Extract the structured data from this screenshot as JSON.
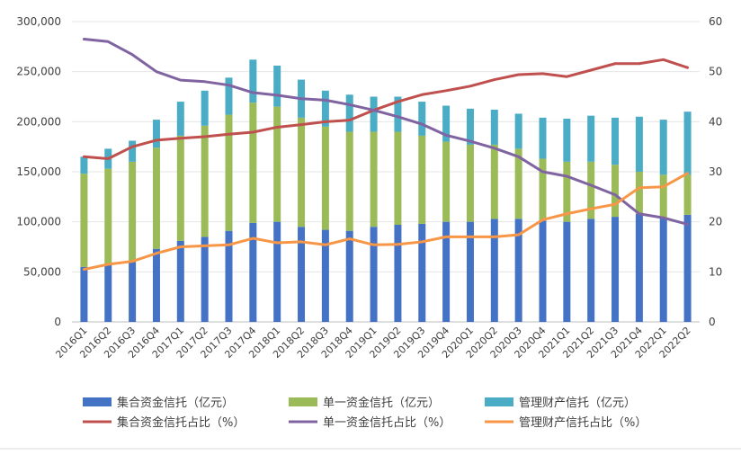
{
  "chart_data": {
    "type": "bar",
    "stacked": true,
    "categories": [
      "2016Q1",
      "2016Q2",
      "2016Q3",
      "2016Q4",
      "2017Q1",
      "2017Q2",
      "2017Q3",
      "2017Q4",
      "2018Q1",
      "2018Q2",
      "2018Q3",
      "2018Q4",
      "2019Q1",
      "2019Q2",
      "2019Q3",
      "2019Q4",
      "2020Q1",
      "2020Q2",
      "2020Q3",
      "2020Q4",
      "2021Q1",
      "2021Q2",
      "2021Q3",
      "2021Q4",
      "2022Q1",
      "2022Q2"
    ],
    "left_axis": {
      "min": 0,
      "max": 300000,
      "step": 50000,
      "tick_labels": [
        "0",
        "50,000",
        "100,000",
        "150,000",
        "200,000",
        "250,000",
        "300,000"
      ]
    },
    "right_axis": {
      "min": 0,
      "max": 60,
      "step": 10,
      "tick_labels": [
        "0",
        "10",
        "20",
        "30",
        "40",
        "50",
        "60"
      ]
    },
    "bar_series": [
      {
        "name": "集合资金信托（亿元）",
        "color": "#4472C4",
        "values": [
          55000,
          57000,
          60000,
          73000,
          81000,
          85000,
          91000,
          99000,
          100000,
          95000,
          92000,
          91000,
          95000,
          97000,
          98000,
          100000,
          100000,
          103000,
          103000,
          101000,
          100000,
          103000,
          105000,
          108000,
          104000,
          107000
        ]
      },
      {
        "name": "单一资金信托（亿元）",
        "color": "#9BBB59",
        "values": [
          93000,
          96000,
          100000,
          101000,
          105000,
          111000,
          116000,
          120000,
          115000,
          109000,
          103000,
          99000,
          95000,
          93000,
          88000,
          80000,
          77000,
          74000,
          70000,
          62000,
          60000,
          57000,
          52000,
          42000,
          43000,
          40000
        ]
      },
      {
        "name": "管理财产信托（亿元）",
        "color": "#4BACC6",
        "values": [
          17000,
          20000,
          21000,
          28000,
          34000,
          35000,
          37000,
          43000,
          41000,
          38000,
          36000,
          37000,
          35000,
          35000,
          34000,
          36000,
          36000,
          35000,
          35000,
          41000,
          43000,
          46000,
          47000,
          55000,
          55000,
          63000
        ]
      }
    ],
    "line_series": [
      {
        "name": "集合资金信托占比（%）",
        "color": "#C0504D",
        "values": [
          33,
          32.6,
          35,
          36.3,
          36.7,
          37,
          37.5,
          37.9,
          38.9,
          39.4,
          40,
          40.3,
          42.3,
          44,
          45.4,
          46.2,
          47.1,
          48.4,
          49.4,
          49.6,
          49,
          50.3,
          51.6,
          51.6,
          52.4,
          50.8
        ]
      },
      {
        "name": "单一资金信托占比（%）",
        "color": "#8064A2",
        "values": [
          56.5,
          56,
          53.4,
          50,
          48.3,
          48,
          47.3,
          45.8,
          45.3,
          44.6,
          44.3,
          43.4,
          42.3,
          41,
          39.5,
          37.3,
          36.1,
          34.7,
          33,
          30,
          29.1,
          27.3,
          25.4,
          21.6,
          20.8,
          19.5
        ]
      },
      {
        "name": "管理财产信托占比（%）",
        "color": "#F79646",
        "values": [
          10.5,
          11.5,
          12.1,
          13.7,
          15,
          15.2,
          15.4,
          16.7,
          15.8,
          16,
          15.4,
          16.6,
          15.4,
          15.5,
          16,
          17,
          17,
          17,
          17.4,
          20.4,
          21.6,
          22.6,
          23.5,
          26.8,
          27,
          29.7
        ]
      }
    ],
    "legend_position": "bottom"
  }
}
